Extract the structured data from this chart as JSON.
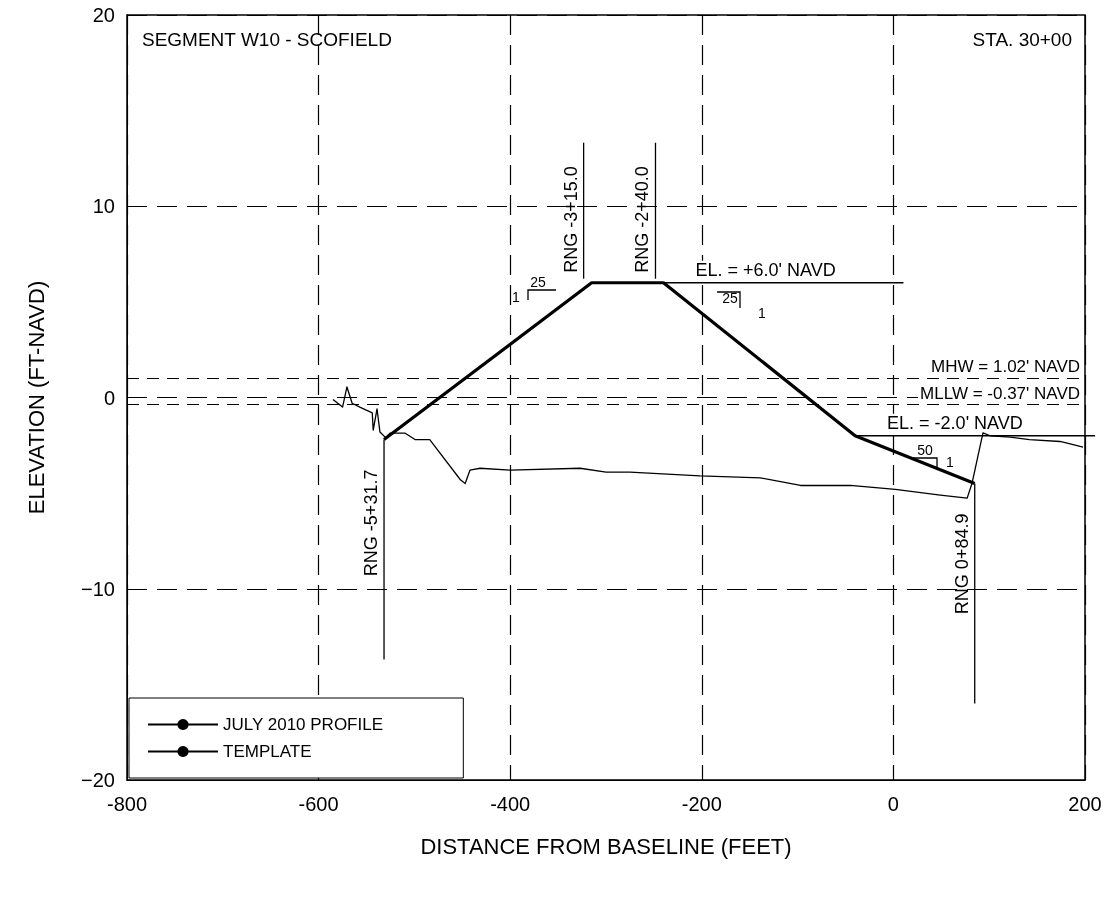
{
  "chart_data": {
    "type": "line",
    "title": "SEGMENT W10 - SCOFIELD",
    "subtitle": "STA. 30+00",
    "xlabel": "DISTANCE FROM BASELINE (FEET)",
    "ylabel": "ELEVATION (FT-NAVD)",
    "series": [
      {
        "name": "JULY 2010 PROFILE",
        "color": "#000000",
        "x": [
          -585,
          -575,
          -570.4,
          -565,
          -557,
          -544,
          -543,
          -539,
          -536,
          -530,
          -525.5,
          -510,
          -499.4,
          -484,
          -452,
          -447,
          -442,
          -431.5,
          -400,
          -327,
          -300,
          -275,
          -202,
          -139,
          -97,
          -45,
          2,
          49,
          77,
          82,
          93.5,
          101,
          122,
          142,
          174,
          198
        ],
        "values": [
          -0.1,
          -0.5,
          0.55,
          -0.3,
          -0.5,
          -0.8,
          -1.7,
          -0.6,
          -1.8,
          -2.1,
          -1.86,
          -1.86,
          -2.2,
          -2.2,
          -4.3,
          -4.5,
          -3.8,
          -3.7,
          -3.8,
          -3.7,
          -3.9,
          -3.9,
          -4.1,
          -4.2,
          -4.6,
          -4.6,
          -4.8,
          -5.1,
          -5.26,
          -4.5,
          -1.85,
          -2,
          -2.07,
          -2.2,
          -2.3,
          -2.6
        ]
      },
      {
        "name": "TEMPLATE",
        "color": "#000000",
        "x": [
          -531.7,
          -315,
          -240,
          -40,
          84.9
        ],
        "values": [
          -2.2,
          6,
          6,
          -2,
          -4.5
        ]
      }
    ],
    "xlim": [
      -800,
      200
    ],
    "xticks": [
      -800,
      -600,
      -400,
      -200,
      0,
      200
    ],
    "ylim": [
      -20,
      20
    ],
    "yticks": [
      -20,
      -10,
      0,
      10,
      20
    ],
    "grid": true,
    "legend": "bottom left",
    "marker": "none",
    "ref_lines": [
      {
        "axis": "y",
        "value": 1.02,
        "label": "MHW = 1.02' NAVD",
        "line_style": "dashed",
        "color": "#000000"
      },
      {
        "axis": "y",
        "value": -0.37,
        "label": "MLLW = -0.37' NAVD",
        "line_style": "dashed",
        "color": "#000000"
      }
    ],
    "annotations": [
      {
        "text": "RNG -3+15.0",
        "x": -315,
        "y": 6
      },
      {
        "text": "RNG -2+40.0",
        "x": -240,
        "y": 6
      },
      {
        "text": "RNG -5+31.7",
        "x": -531.7,
        "y": -2.2
      },
      {
        "text": "RNG 0+84.9",
        "x": 84.9,
        "y": -4.5
      },
      {
        "text": "EL. = +6.0' NAVD",
        "x": -240,
        "y": 6
      },
      {
        "text": "EL. = -2.0' NAVD",
        "x": -40,
        "y": -2
      },
      "25",
      "1",
      "25",
      "1",
      "50",
      "1"
    ]
  }
}
